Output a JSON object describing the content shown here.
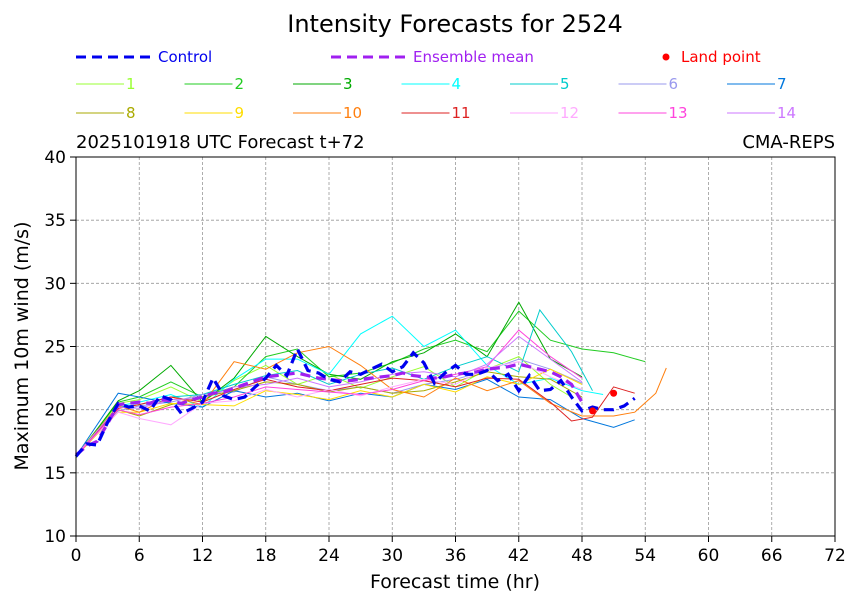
{
  "chart_data": {
    "type": "line",
    "title": "Intensity Forecasts for 2524",
    "subtitle_left": "2025101918 UTC Forecast t+72",
    "subtitle_right": "CMA-REPS",
    "xlabel": "Forecast time (hr)",
    "ylabel": "Maximum 10m wind (m/s)",
    "xlim": [
      0,
      72
    ],
    "ylim": [
      10,
      40
    ],
    "xticks": [
      0,
      6,
      12,
      18,
      24,
      30,
      36,
      42,
      48,
      54,
      60,
      66,
      72
    ],
    "yticks": [
      10,
      15,
      20,
      25,
      30,
      35,
      40
    ],
    "grid": true,
    "legend": {
      "control": "Control",
      "ensemble_mean": "Ensemble mean",
      "land_point": "Land point"
    },
    "control": {
      "name": "Control",
      "color": "#0000ee",
      "x": [
        0,
        1,
        2,
        3,
        4,
        5,
        6,
        7,
        8,
        9,
        10,
        11,
        12,
        13,
        14,
        15,
        16,
        17,
        18,
        19,
        20,
        21,
        22,
        23,
        24,
        25,
        26,
        27,
        28,
        29,
        30,
        31,
        32,
        33,
        34,
        35,
        36,
        37,
        38,
        39,
        40,
        41,
        42,
        43,
        44,
        45,
        46,
        47,
        48,
        49,
        50,
        51,
        52,
        53
      ],
      "y": [
        16.3,
        17.3,
        17.2,
        19.0,
        20.5,
        20.2,
        20.3,
        19.9,
        21.1,
        20.8,
        19.7,
        20.1,
        20.6,
        22.5,
        21.1,
        20.8,
        21.0,
        21.8,
        22.5,
        23.5,
        22.7,
        24.8,
        23.1,
        22.9,
        22.4,
        22.2,
        23.0,
        22.8,
        23.2,
        23.6,
        23.0,
        23.4,
        24.5,
        23.7,
        22.1,
        22.9,
        23.5,
        22.8,
        22.8,
        23.1,
        22.3,
        22.8,
        21.5,
        22.7,
        21.5,
        21.6,
        22.3,
        21.0,
        19.9,
        20.2,
        20.0,
        20.0,
        20.3,
        20.9
      ]
    },
    "ensemble_mean": {
      "name": "Ensemble mean",
      "color": "#a020f0",
      "x": [
        0,
        1,
        2,
        3,
        4,
        5,
        6,
        7,
        8,
        9,
        10,
        11,
        12,
        13,
        14,
        15,
        16,
        17,
        18,
        19,
        20,
        21,
        22,
        23,
        24,
        25,
        26,
        27,
        28,
        29,
        30,
        31,
        32,
        33,
        34,
        35,
        36,
        37,
        38,
        39,
        40,
        41,
        42,
        43,
        44,
        45,
        46,
        47,
        48
      ],
      "y": [
        16.4,
        17.1,
        17.5,
        18.9,
        20.4,
        20.5,
        20.6,
        20.5,
        20.8,
        20.7,
        20.5,
        20.8,
        21.0,
        21.3,
        21.4,
        21.7,
        22.0,
        22.3,
        22.6,
        22.7,
        22.8,
        22.9,
        22.7,
        22.5,
        22.4,
        22.3,
        22.3,
        22.4,
        22.5,
        22.6,
        22.7,
        22.9,
        22.7,
        22.6,
        22.5,
        22.6,
        22.8,
        22.9,
        23.0,
        23.2,
        23.3,
        23.4,
        23.6,
        23.4,
        23.2,
        23.0,
        22.6,
        22.0,
        20.6
      ]
    },
    "land_points": {
      "name": "Land point",
      "color": "#ff0000",
      "x": [
        49,
        51
      ],
      "y": [
        19.9,
        21.3
      ]
    },
    "members": [
      {
        "name": "1",
        "color": "#99ff33",
        "x": [
          0,
          4,
          6,
          9,
          12,
          15,
          18,
          21,
          24,
          27,
          30,
          33,
          36,
          39,
          42,
          45,
          47
        ],
        "y": [
          16.4,
          20.5,
          20.8,
          21.8,
          20.6,
          22.3,
          23.5,
          22.0,
          22.8,
          21.7,
          22.6,
          23.4,
          21.8,
          23.2,
          24.2,
          22.0,
          21.0
        ]
      },
      {
        "name": "2",
        "color": "#22cc22",
        "x": [
          0,
          4,
          6,
          9,
          12,
          15,
          18,
          21,
          24,
          27,
          30,
          33,
          36,
          39,
          42,
          45,
          48,
          51,
          54
        ],
        "y": [
          16.3,
          20.6,
          21.0,
          22.2,
          21.0,
          21.8,
          24.2,
          24.8,
          22.6,
          22.9,
          23.7,
          24.8,
          25.5,
          24.6,
          27.8,
          25.5,
          24.8,
          24.5,
          23.8
        ]
      },
      {
        "name": "3",
        "color": "#00aa00",
        "x": [
          0,
          4,
          6,
          9,
          12,
          15,
          18,
          21,
          24,
          27,
          30,
          33,
          36,
          39,
          42,
          45,
          48
        ],
        "y": [
          16.2,
          20.7,
          21.5,
          23.5,
          20.6,
          22.5,
          25.8,
          24.2,
          22.8,
          22.4,
          23.8,
          24.5,
          26.0,
          24.2,
          28.5,
          24.0,
          22.6
        ]
      },
      {
        "name": "4",
        "color": "#00ffff",
        "x": [
          0,
          4,
          6,
          9,
          12,
          15,
          18,
          21,
          24,
          27,
          30,
          33,
          36,
          39,
          42,
          45,
          48,
          50
        ],
        "y": [
          16.4,
          20.3,
          20.6,
          21.2,
          20.2,
          22.4,
          24.0,
          24.0,
          22.8,
          26.0,
          27.4,
          25.0,
          26.3,
          23.5,
          22.0,
          22.5,
          21.5,
          21.2
        ]
      },
      {
        "name": "5",
        "color": "#00cccc",
        "x": [
          0,
          4,
          6,
          9,
          12,
          15,
          18,
          21,
          24,
          27,
          30,
          33,
          36,
          39,
          42,
          44,
          47,
          49
        ],
        "y": [
          16.3,
          20.2,
          20.4,
          21.0,
          21.2,
          22.0,
          22.7,
          23.1,
          22.0,
          22.8,
          23.3,
          22.4,
          23.4,
          24.2,
          23.0,
          27.9,
          24.6,
          21.5
        ]
      },
      {
        "name": "6",
        "color": "#9999ee",
        "x": [
          0,
          4,
          6,
          9,
          12,
          15,
          18,
          21,
          24,
          27,
          30,
          33,
          36,
          39,
          42,
          45,
          48
        ],
        "y": [
          16.4,
          19.9,
          20.3,
          20.6,
          21.2,
          21.4,
          22.6,
          22.0,
          21.5,
          21.8,
          21.3,
          22.0,
          22.4,
          23.1,
          24.0,
          23.2,
          22.1
        ]
      },
      {
        "name": "7",
        "color": "#0077dd",
        "x": [
          0,
          4,
          6,
          9,
          12,
          15,
          18,
          21,
          24,
          27,
          30,
          33,
          36,
          39,
          42,
          45,
          48,
          51,
          53
        ],
        "y": [
          16.3,
          21.3,
          21.0,
          20.5,
          20.2,
          21.5,
          21.0,
          21.3,
          20.7,
          21.3,
          21.0,
          22.0,
          21.6,
          22.4,
          21.0,
          20.8,
          19.3,
          18.6,
          19.2
        ]
      },
      {
        "name": "8",
        "color": "#aaaa00",
        "x": [
          0,
          4,
          6,
          9,
          12,
          15,
          18,
          21,
          24,
          27,
          30,
          33,
          36,
          39,
          42,
          45,
          48
        ],
        "y": [
          16.4,
          20.0,
          19.5,
          20.4,
          21.0,
          21.5,
          22.2,
          22.0,
          21.4,
          21.8,
          21.3,
          21.5,
          22.2,
          23.0,
          22.6,
          22.4,
          21.0
        ]
      },
      {
        "name": "9",
        "color": "#ffdd00",
        "x": [
          0,
          4,
          6,
          9,
          12,
          15,
          18,
          21,
          24,
          27,
          30,
          33,
          36,
          39,
          42,
          45,
          48
        ],
        "y": [
          16.3,
          19.8,
          19.8,
          20.5,
          20.4,
          20.3,
          21.5,
          21.2,
          20.8,
          21.5,
          21.0,
          22.0,
          21.4,
          22.6,
          22.0,
          23.2,
          22.0
        ]
      },
      {
        "name": "10",
        "color": "#ff7f0e",
        "x": [
          0,
          4,
          6,
          9,
          12,
          15,
          18,
          21,
          24,
          27,
          30,
          33,
          36,
          39,
          42,
          45,
          48,
          51,
          53,
          55,
          56
        ],
        "y": [
          16.4,
          20.3,
          19.8,
          21.0,
          20.4,
          23.8,
          23.2,
          24.5,
          25.0,
          23.5,
          21.6,
          21.0,
          22.5,
          21.5,
          22.3,
          20.5,
          19.5,
          19.5,
          19.8,
          21.3,
          23.3
        ]
      },
      {
        "name": "11",
        "color": "#dd2222",
        "x": [
          0,
          4,
          6,
          9,
          12,
          15,
          18,
          21,
          24,
          27,
          30,
          33,
          36,
          39,
          42,
          45,
          47,
          49,
          51,
          53
        ],
        "y": [
          16.3,
          20.1,
          20.4,
          21.0,
          20.6,
          21.6,
          22.4,
          21.8,
          21.5,
          22.0,
          22.5,
          22.3,
          21.8,
          22.5,
          22.4,
          20.6,
          19.1,
          19.4,
          21.8,
          21.3
        ]
      },
      {
        "name": "12",
        "color": "#ffaaff",
        "x": [
          0,
          4,
          6,
          9,
          12,
          15,
          18,
          21,
          24,
          27,
          30,
          33,
          36,
          39,
          42,
          45,
          48
        ],
        "y": [
          16.4,
          19.8,
          19.3,
          18.8,
          20.5,
          20.7,
          21.6,
          21.0,
          21.6,
          21.1,
          21.8,
          22.4,
          22.0,
          23.3,
          23.8,
          22.6,
          21.6
        ]
      },
      {
        "name": "13",
        "color": "#ff44dd",
        "x": [
          0,
          4,
          6,
          9,
          12,
          15,
          18,
          21,
          24,
          27,
          30,
          33,
          36,
          39,
          42,
          45,
          48
        ],
        "y": [
          16.3,
          20.0,
          19.6,
          20.2,
          20.5,
          21.0,
          21.8,
          21.6,
          21.4,
          21.2,
          21.6,
          22.3,
          22.8,
          23.4,
          26.3,
          24.2,
          22.5
        ]
      },
      {
        "name": "14",
        "color": "#cc77ff",
        "x": [
          0,
          4,
          6,
          9,
          12,
          15,
          18,
          21,
          24,
          27,
          30,
          33,
          36,
          39,
          42,
          45,
          48
        ],
        "y": [
          16.4,
          20.2,
          20.1,
          20.8,
          20.9,
          21.8,
          22.0,
          22.5,
          21.8,
          22.2,
          22.8,
          23.0,
          22.6,
          23.6,
          25.8,
          24.0,
          22.2
        ]
      }
    ]
  }
}
